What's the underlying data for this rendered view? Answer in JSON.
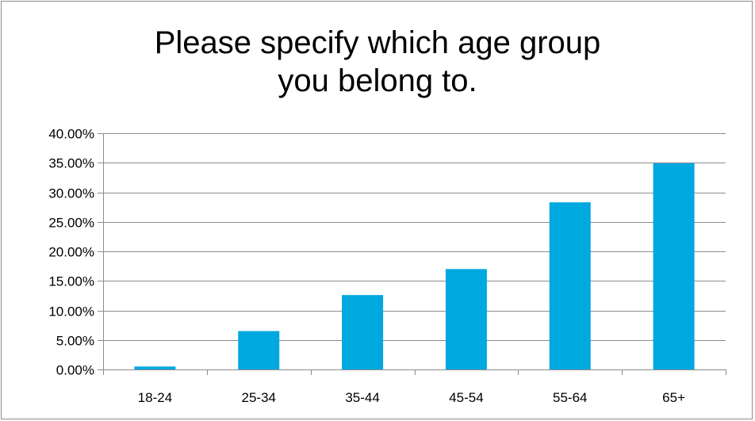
{
  "chart_data": {
    "type": "bar",
    "title": "Please specify which age group\nyou belong to.",
    "xlabel": "",
    "ylabel": "",
    "categories": [
      "18-24",
      "25-34",
      "35-44",
      "45-54",
      "55-64",
      "65+"
    ],
    "values": [
      0.005,
      0.065,
      0.126,
      0.17,
      0.283,
      0.349
    ],
    "ylim": [
      0,
      0.4
    ],
    "yticks": [
      0,
      0.05,
      0.1,
      0.15,
      0.2,
      0.25,
      0.3,
      0.35,
      0.4
    ],
    "ytick_labels": [
      "0.00%",
      "5.00%",
      "10.00%",
      "15.00%",
      "20.00%",
      "25.00%",
      "30.00%",
      "35.00%",
      "40.00%"
    ],
    "grid": true,
    "legend": "none",
    "bar_color": "#00a8e0",
    "grid_color": "#8c8c8c"
  }
}
